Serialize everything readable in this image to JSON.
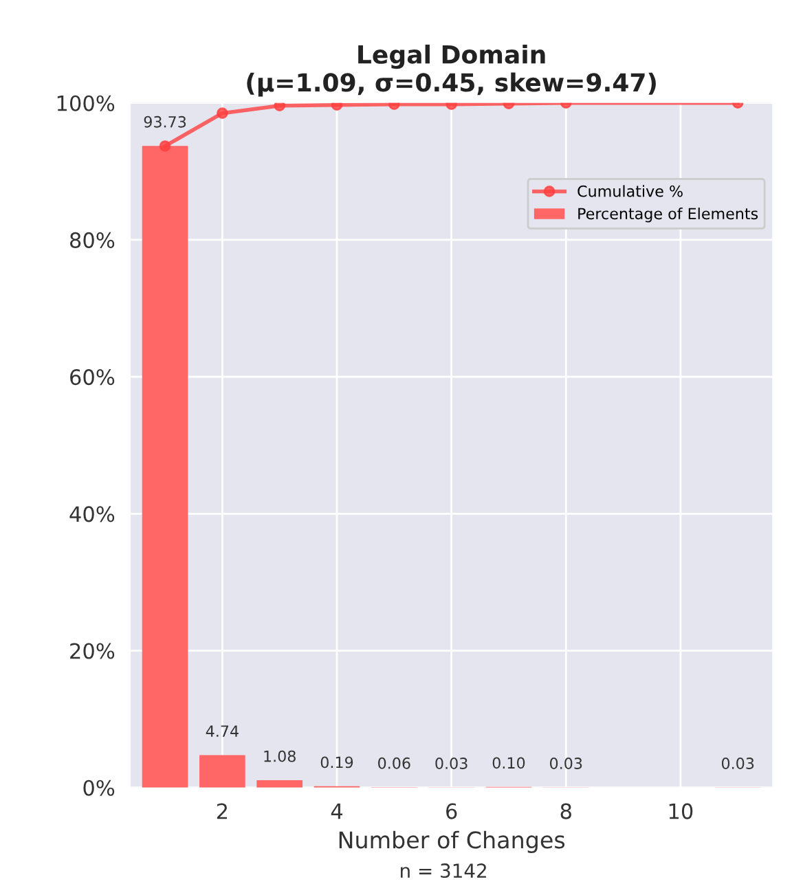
{
  "chart_data": {
    "type": "bar",
    "title": "Legal Domain\n(μ=1.09, σ=0.45, skew=9.47)",
    "xlabel": "Number of Changes",
    "annotations": [
      "n = 3142"
    ],
    "xlim": [
      0.4,
      11.6
    ],
    "xticks": [
      2,
      4,
      6,
      8,
      10
    ],
    "ylim": [
      0,
      100
    ],
    "yticks": [
      {
        "value": 0,
        "label": "0%"
      },
      {
        "value": 20,
        "label": "20%"
      },
      {
        "value": 40,
        "label": "40%"
      },
      {
        "value": 60,
        "label": "60%"
      },
      {
        "value": 80,
        "label": "80%"
      },
      {
        "value": 100,
        "label": "100%"
      }
    ],
    "grid": true,
    "legend": "top right",
    "series": [
      {
        "name": "Cumulative %",
        "type": "line",
        "color": "#ff4040",
        "marker": "circle",
        "x": [
          1,
          2,
          3,
          4,
          5,
          6,
          7,
          8,
          11
        ],
        "values": [
          93.7,
          98.5,
          99.6,
          99.7,
          99.8,
          99.8,
          99.9,
          100,
          100
        ]
      },
      {
        "name": "Percentage of Elements",
        "color": "#ff6666",
        "x": [
          1,
          2,
          3,
          4,
          5,
          6,
          7,
          8,
          11
        ],
        "values": [
          93.73,
          4.74,
          1.08,
          0.19,
          0.06,
          0.03,
          0.1,
          0.03,
          0.03
        ],
        "value_labels": [
          "93.73",
          "4.74",
          "1.08",
          "0.19",
          "0.06",
          "0.03",
          "0.10",
          "0.03",
          "0.03"
        ]
      }
    ]
  }
}
